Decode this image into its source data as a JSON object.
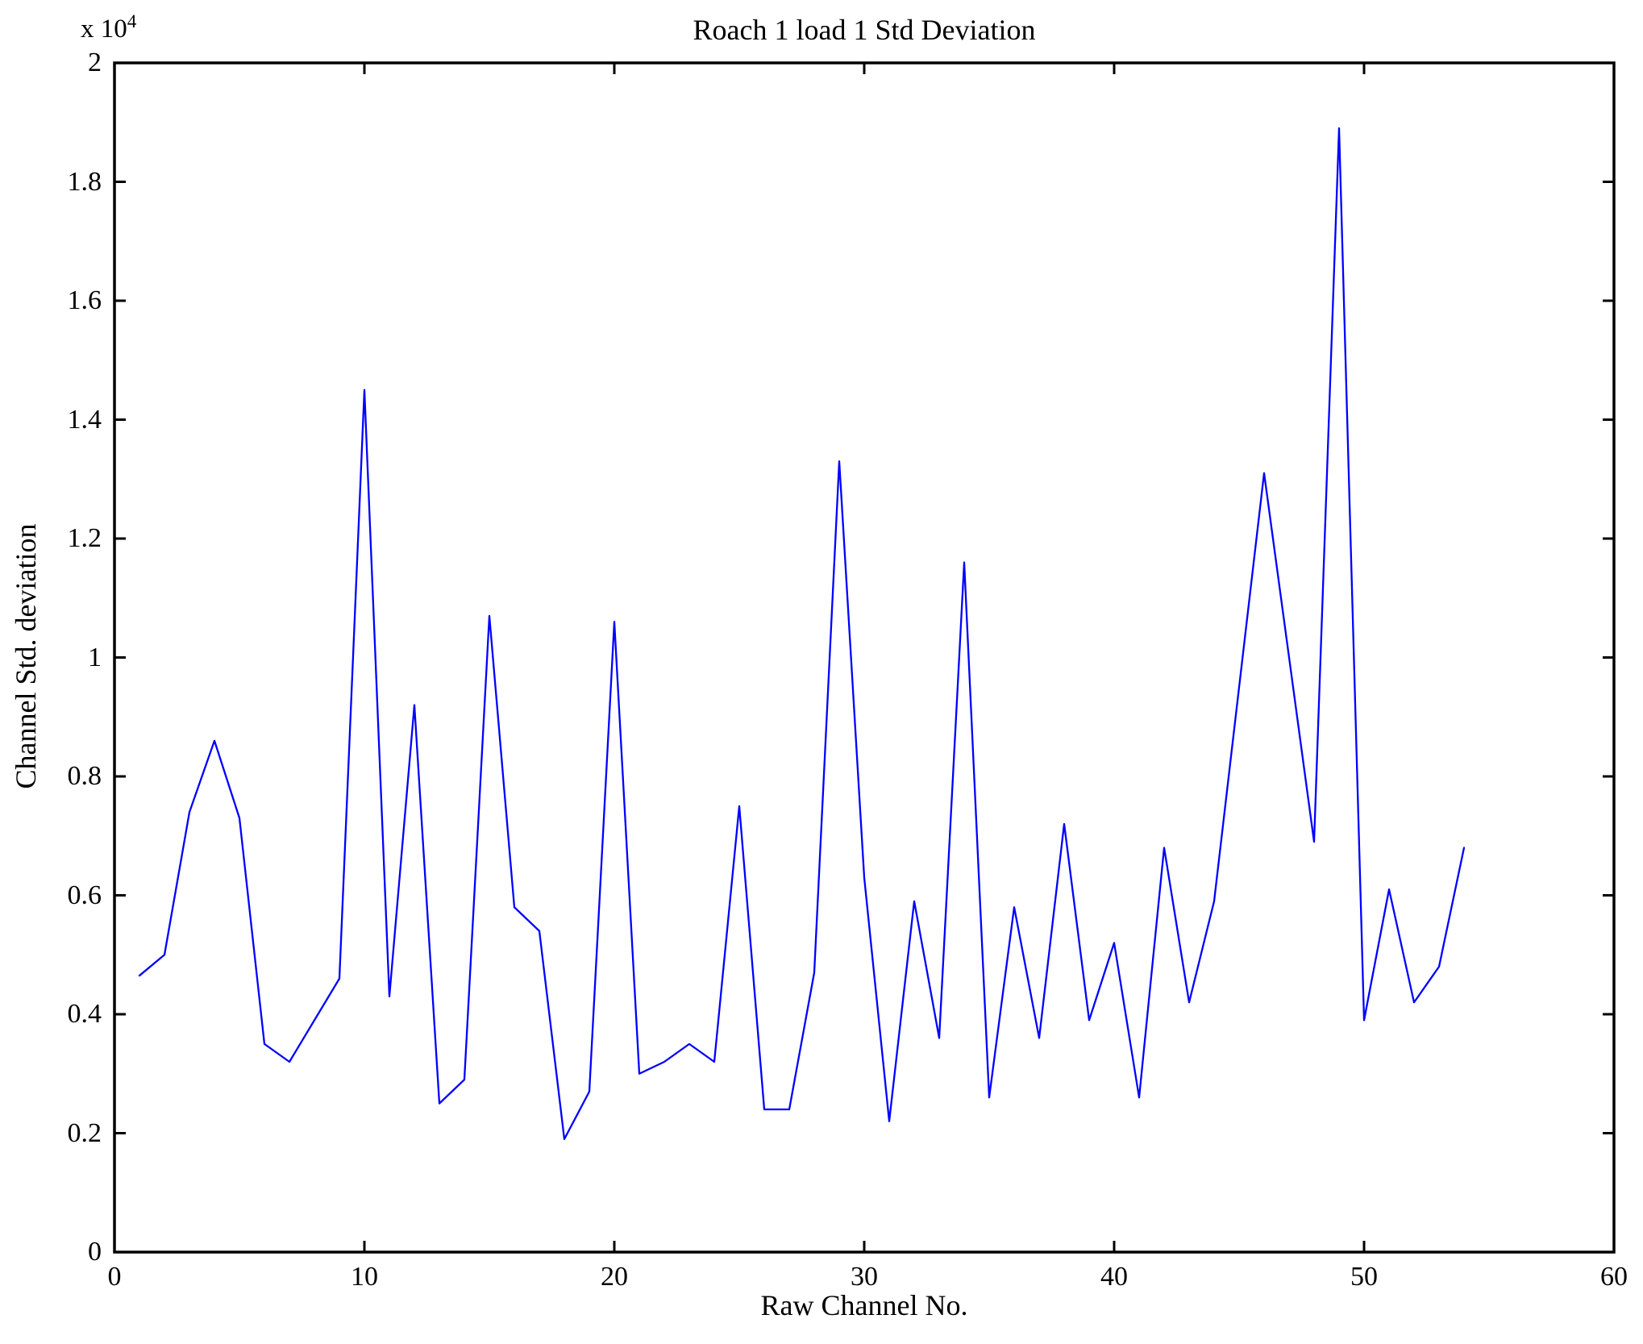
{
  "figure": {
    "background_color": "#ffffff",
    "axis_color": "#000000"
  },
  "chart_data": {
    "type": "line",
    "title": "Roach 1 load 1 Std Deviation",
    "xlabel": "Raw Channel No.",
    "ylabel": "Channel Std. deviation",
    "y_axis_multiplier": {
      "base": "x 10",
      "exponent": "4"
    },
    "xlim": [
      0,
      60
    ],
    "ylim": [
      0,
      20000
    ],
    "grid": false,
    "legend": null,
    "line_color": "#0000FF",
    "axis_color": "#000000",
    "x_ticks": [
      0,
      10,
      20,
      30,
      40,
      50,
      60
    ],
    "x_tick_labels": [
      "0",
      "10",
      "20",
      "30",
      "40",
      "50",
      "60"
    ],
    "y_ticks": [
      0,
      2000,
      4000,
      6000,
      8000,
      10000,
      12000,
      14000,
      16000,
      18000,
      20000
    ],
    "y_tick_labels": [
      "0",
      "0.2",
      "0.4",
      "0.6",
      "0.8",
      "1",
      "1.2",
      "1.4",
      "1.6",
      "1.8",
      "2"
    ],
    "x": [
      1,
      2,
      3,
      4,
      5,
      6,
      7,
      8,
      9,
      10,
      11,
      12,
      13,
      14,
      15,
      16,
      17,
      18,
      19,
      20,
      21,
      22,
      23,
      24,
      25,
      26,
      27,
      28,
      29,
      30,
      31,
      32,
      33,
      34,
      35,
      36,
      37,
      38,
      39,
      40,
      41,
      42,
      43,
      44,
      45,
      46,
      47,
      48,
      49,
      50,
      51,
      52,
      53,
      54
    ],
    "values": [
      4650,
      5000,
      7400,
      8600,
      7300,
      3500,
      3200,
      3900,
      4600,
      14500,
      4300,
      9200,
      2500,
      2900,
      10700,
      5800,
      5400,
      1900,
      2700,
      10600,
      3000,
      3200,
      3500,
      3200,
      7500,
      2400,
      2400,
      4700,
      13300,
      6300,
      2200,
      5900,
      3600,
      11600,
      2600,
      5800,
      3600,
      7200,
      3900,
      5200,
      2600,
      6800,
      4200,
      5900,
      9500,
      13100,
      10000,
      6900,
      18900,
      3900,
      6100,
      4200,
      4800,
      6800
    ]
  }
}
